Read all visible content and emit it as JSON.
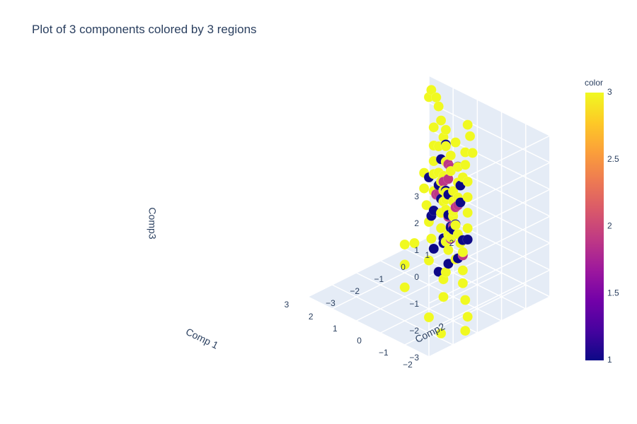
{
  "chart_data": {
    "type": "scatter3d",
    "title": "Plot of 3 components colored by 3 regions",
    "axes": {
      "x": {
        "label": "Comp 1",
        "range": [
          -2,
          3
        ],
        "ticks": [
          "−2",
          "−1",
          "0",
          "1",
          "2",
          "3"
        ]
      },
      "y": {
        "label": "Comp2",
        "range": [
          -3,
          2
        ],
        "ticks": [
          "−3",
          "−2",
          "−1",
          "0",
          "1",
          "2"
        ]
      },
      "z": {
        "label": "Comp3",
        "range": [
          -3,
          3
        ],
        "ticks": [
          "−3",
          "−2",
          "−1",
          "0",
          "1",
          "2",
          "3"
        ]
      }
    },
    "colorbar": {
      "title": "color",
      "range": [
        1,
        3
      ],
      "ticks": [
        "1",
        "1.5",
        "2",
        "2.5",
        "3"
      ],
      "colorscale": [
        "#0d0887",
        "#46039f",
        "#7201a8",
        "#9c179e",
        "#bd3786",
        "#d8576b",
        "#ed7953",
        "#fb9f3a",
        "#fdca26",
        "#f0f921"
      ]
    },
    "background_color": "#e5ecf6",
    "grid": true,
    "series": [
      {
        "color_value": 1,
        "color": "#0d0887",
        "points": [
          [
            0.1,
            -0.2,
            1.0
          ],
          [
            0.5,
            0.0,
            1.9
          ],
          [
            0.9,
            0.6,
            2.0
          ],
          [
            -0.5,
            -0.4,
            0.1
          ],
          [
            -0.2,
            -0.3,
            -0.2
          ],
          [
            0.0,
            0.0,
            -0.5
          ],
          [
            0.3,
            0.2,
            -0.6
          ],
          [
            0.6,
            0.4,
            -0.4
          ],
          [
            -0.4,
            -0.2,
            -1.3
          ],
          [
            -0.2,
            -0.4,
            -1.5
          ],
          [
            0.2,
            -0.2,
            -1.0
          ],
          [
            0.4,
            0.0,
            -1.0
          ],
          [
            1.0,
            0.8,
            0.0
          ],
          [
            1.2,
            0.7,
            -0.2
          ],
          [
            -0.1,
            0.2,
            1.1
          ],
          [
            0.3,
            -0.5,
            0.3
          ],
          [
            0.7,
            0.1,
            0.8
          ],
          [
            -0.3,
            0.1,
            -0.8
          ],
          [
            0.2,
            0.5,
            0.2
          ],
          [
            1.0,
            0.0,
            1.0
          ],
          [
            0.5,
            -0.3,
            -1.3
          ],
          [
            -0.6,
            0.0,
            -0.6
          ],
          [
            0.8,
            -0.1,
            -0.3
          ],
          [
            0.0,
            -0.6,
            -1.8
          ],
          [
            0.4,
            0.6,
            1.4
          ]
        ]
      },
      {
        "color_value": 2,
        "color": "#bd3786",
        "points": [
          [
            0.2,
            0.0,
            1.3
          ],
          [
            0.4,
            0.3,
            1.5
          ],
          [
            0.6,
            -0.1,
            0.6
          ],
          [
            -0.3,
            -0.3,
            -0.1
          ],
          [
            0.1,
            0.2,
            0.2
          ],
          [
            0.8,
            0.1,
            0.4
          ],
          [
            1.0,
            0.4,
            0.2
          ],
          [
            -0.6,
            -0.2,
            -1.1
          ],
          [
            0.3,
            0.1,
            -0.2
          ],
          [
            1.3,
            0.9,
            0.3
          ],
          [
            0.0,
            -0.1,
            -0.8
          ],
          [
            0.7,
            0.5,
            1.4
          ],
          [
            -0.2,
            0.0,
            0.5
          ]
        ]
      },
      {
        "color_value": 3,
        "color": "#f0f921",
        "points": [
          [
            0.0,
            0.0,
            0.0
          ],
          [
            0.2,
            -0.1,
            0.2
          ],
          [
            0.4,
            0.1,
            0.4
          ],
          [
            0.6,
            0.2,
            0.6
          ],
          [
            0.8,
            0.3,
            0.8
          ],
          [
            1.0,
            0.4,
            1.0
          ],
          [
            -0.2,
            -0.1,
            -0.2
          ],
          [
            -0.4,
            -0.2,
            -0.4
          ],
          [
            -0.6,
            -0.3,
            -0.6
          ],
          [
            -0.8,
            -0.4,
            -0.8
          ],
          [
            0.1,
            0.3,
            0.5
          ],
          [
            0.3,
            0.5,
            0.9
          ],
          [
            0.5,
            0.7,
            1.3
          ],
          [
            0.7,
            0.6,
            1.1
          ],
          [
            0.9,
            0.8,
            1.5
          ],
          [
            -0.1,
            -0.3,
            -0.5
          ],
          [
            -0.3,
            -0.5,
            -0.9
          ],
          [
            -0.5,
            -0.4,
            -1.2
          ],
          [
            0.2,
            0.2,
            0.0
          ],
          [
            0.4,
            0.4,
            0.2
          ],
          [
            0.6,
            0.6,
            0.4
          ],
          [
            0.8,
            0.5,
            0.3
          ],
          [
            1.1,
            0.7,
            0.7
          ],
          [
            1.3,
            1.0,
            1.0
          ],
          [
            1.5,
            1.2,
            1.4
          ],
          [
            1.7,
            1.3,
            1.6
          ],
          [
            2.0,
            1.5,
            2.0
          ],
          [
            2.3,
            1.7,
            2.3
          ],
          [
            2.5,
            1.8,
            2.5
          ],
          [
            2.8,
            1.9,
            2.6
          ],
          [
            3.0,
            2.0,
            2.2
          ],
          [
            -1.0,
            -0.6,
            -1.3
          ],
          [
            -1.2,
            -0.8,
            -1.6
          ],
          [
            -1.5,
            -1.0,
            -2.0
          ],
          [
            -1.8,
            -1.2,
            -2.4
          ],
          [
            -2.0,
            -1.5,
            -2.7
          ],
          [
            -1.5,
            -2.0,
            -2.8
          ],
          [
            -0.8,
            -1.8,
            -2.6
          ],
          [
            0.5,
            -1.5,
            -2.2
          ],
          [
            1.0,
            -1.0,
            -1.8
          ],
          [
            1.5,
            -0.5,
            -1.5
          ],
          [
            0.0,
            -1.0,
            -1.2
          ],
          [
            -0.5,
            -0.8,
            -1.5
          ],
          [
            0.3,
            -0.6,
            -0.7
          ],
          [
            0.6,
            -0.4,
            -0.3
          ],
          [
            0.9,
            -0.2,
            0.1
          ],
          [
            1.2,
            0.0,
            0.5
          ],
          [
            1.4,
            0.2,
            0.9
          ],
          [
            0.1,
            0.6,
            1.6
          ],
          [
            -0.2,
            0.4,
            1.2
          ],
          [
            -0.4,
            0.2,
            0.8
          ],
          [
            -0.6,
            0.0,
            0.4
          ],
          [
            -0.8,
            -0.2,
            0.0
          ],
          [
            1.6,
            0.8,
            0.5
          ],
          [
            1.8,
            1.0,
            0.8
          ],
          [
            2.0,
            1.2,
            1.2
          ],
          [
            2.2,
            1.4,
            1.7
          ],
          [
            0.0,
            0.8,
            2.0
          ],
          [
            0.3,
            1.0,
            2.4
          ],
          [
            0.6,
            1.2,
            2.6
          ],
          [
            -0.3,
            -0.7,
            -1.9
          ],
          [
            0.8,
            -0.8,
            -1.0
          ],
          [
            1.2,
            0.6,
            1.8
          ],
          [
            0.4,
            0.9,
            1.8
          ],
          [
            -0.7,
            -1.1,
            -2.2
          ],
          [
            0.2,
            -0.3,
            -0.4
          ],
          [
            0.5,
            0.0,
            -0.1
          ],
          [
            0.7,
            0.3,
            0.1
          ],
          [
            1.0,
            0.2,
            0.4
          ],
          [
            -0.1,
            0.1,
            0.7
          ],
          [
            0.1,
            -0.2,
            -0.9
          ],
          [
            0.9,
            1.0,
            1.9
          ],
          [
            1.4,
            1.1,
            2.1
          ],
          [
            0.3,
            0.7,
            1.0
          ],
          [
            -0.5,
            -0.6,
            -0.3
          ]
        ]
      }
    ]
  }
}
